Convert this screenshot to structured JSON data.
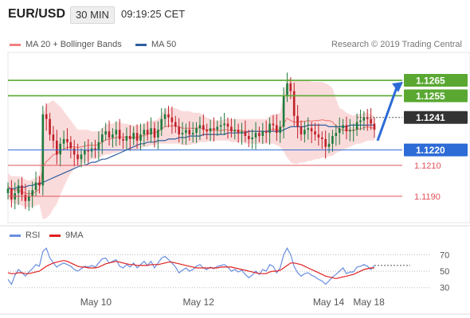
{
  "header": {
    "pair": "EUR/USD",
    "timeframe": "30 MIN",
    "time": "09:19:25 CET"
  },
  "legend": {
    "bollinger": "MA 20 + Bollinger Bands",
    "ma50": "MA 50",
    "copyright": "Research © 2019 Trading Central"
  },
  "rsi_legend": {
    "rsi": "RSI",
    "ma": "9MA"
  },
  "colors": {
    "up": "#1e7b3c",
    "down": "#c0202a",
    "green_level": "#5aa832",
    "blue_level": "#2d6bd6",
    "red_level": "#e0505a",
    "dark_level": "#333333",
    "band_fill": "#f8cfcf",
    "ma20": "#f08080",
    "ma50": "#2e5f9e",
    "rsi": "#6a8ee0",
    "rsi_ma": "#e02020"
  },
  "chart_data": [
    {
      "type": "candlestick",
      "title": "EUR/USD 30 MIN",
      "x_ticks": [
        "May 10",
        "May 12",
        "May 14",
        "May 18"
      ],
      "ylim": [
        1.1173,
        1.1283
      ],
      "levels": [
        {
          "value": 1.1265,
          "label": "1.1265",
          "style": "green"
        },
        {
          "value": 1.1255,
          "label": "1.1255",
          "style": "green"
        },
        {
          "value": 1.1241,
          "label": "1.1241",
          "style": "dark"
        },
        {
          "value": 1.122,
          "label": "1.1220",
          "style": "blue"
        },
        {
          "value": 1.121,
          "label": "1.1210",
          "style": "red"
        },
        {
          "value": 1.119,
          "label": "1.1190",
          "style": "red"
        }
      ],
      "close_series": [
        1.1195,
        1.1188,
        1.1192,
        1.1197,
        1.1191,
        1.1187,
        1.119,
        1.1194,
        1.1199,
        1.1197,
        1.1243,
        1.124,
        1.123,
        1.1226,
        1.1217,
        1.1224,
        1.1227,
        1.1225,
        1.1221,
        1.1217,
        1.1214,
        1.1217,
        1.122,
        1.1219,
        1.1221,
        1.122,
        1.1225,
        1.123,
        1.1232,
        1.1228,
        1.123,
        1.1233,
        1.1227,
        1.1226,
        1.1229,
        1.1227,
        1.1231,
        1.1226,
        1.123,
        1.1233,
        1.123,
        1.1234,
        1.1228,
        1.1233,
        1.124,
        1.1243,
        1.1241,
        1.1238,
        1.1235,
        1.123,
        1.1231,
        1.1233,
        1.123,
        1.1231,
        1.1234,
        1.1236,
        1.1233,
        1.1232,
        1.1234,
        1.1233,
        1.1235,
        1.1236,
        1.1237,
        1.1235,
        1.1232,
        1.1233,
        1.1231,
        1.1232,
        1.1229,
        1.1227,
        1.1228,
        1.1231,
        1.1229,
        1.1232,
        1.1231,
        1.1237,
        1.1236,
        1.1231,
        1.1235,
        1.1255,
        1.1263,
        1.1258,
        1.1242,
        1.1235,
        1.123,
        1.1233,
        1.1234,
        1.1232,
        1.123,
        1.1228,
        1.1227,
        1.1222,
        1.1224,
        1.1229,
        1.1231,
        1.1234,
        1.1236,
        1.1232,
        1.1233,
        1.1233,
        1.1238,
        1.1239,
        1.1241,
        1.124,
        1.1237,
        1.1233
      ],
      "bollinger": {
        "middle": "MA 20",
        "upper_series": [
          1.1205,
          1.1203,
          1.1203,
          1.1203,
          1.1202,
          1.1201,
          1.12,
          1.1201,
          1.1202,
          1.1204,
          1.1243,
          1.1249,
          1.1251,
          1.1252,
          1.125,
          1.1248,
          1.1245,
          1.1242,
          1.1239,
          1.1236,
          1.1233,
          1.1233,
          1.1233,
          1.1233,
          1.1232,
          1.1232,
          1.1232,
          1.1234,
          1.1236,
          1.1237,
          1.1237,
          1.1238,
          1.1238,
          1.1237,
          1.1237,
          1.1236,
          1.1236,
          1.1236,
          1.1236,
          1.1237,
          1.1238,
          1.1239,
          1.1239,
          1.124,
          1.1243,
          1.1246,
          1.1247,
          1.1247,
          1.1247,
          1.1246,
          1.1245,
          1.1245,
          1.1245,
          1.1244,
          1.1244,
          1.1244,
          1.1242,
          1.1241,
          1.124,
          1.1239,
          1.1239,
          1.1239,
          1.124,
          1.124,
          1.124,
          1.124,
          1.124,
          1.124,
          1.124,
          1.124,
          1.124,
          1.124,
          1.124,
          1.124,
          1.124,
          1.1242,
          1.1243,
          1.1243,
          1.1244,
          1.1255,
          1.1266,
          1.1266,
          1.1265,
          1.1265,
          1.1265,
          1.1265,
          1.1265,
          1.1264,
          1.1264,
          1.1264,
          1.1264,
          1.1263,
          1.1262,
          1.126,
          1.1253,
          1.1247,
          1.1246,
          1.1244,
          1.1243,
          1.1242,
          1.1243,
          1.1243,
          1.1244,
          1.1244,
          1.1243,
          1.1242
        ],
        "lower_series": [
          1.1188,
          1.1186,
          1.1185,
          1.1185,
          1.1184,
          1.1183,
          1.1183,
          1.1183,
          1.1184,
          1.1185,
          1.1175,
          1.1176,
          1.1178,
          1.1182,
          1.1185,
          1.1191,
          1.1196,
          1.1201,
          1.1205,
          1.1208,
          1.121,
          1.1211,
          1.1212,
          1.1213,
          1.1214,
          1.1214,
          1.1215,
          1.1216,
          1.1217,
          1.1217,
          1.1218,
          1.1218,
          1.1219,
          1.1219,
          1.122,
          1.122,
          1.122,
          1.122,
          1.1221,
          1.1222,
          1.1222,
          1.1223,
          1.1223,
          1.1224,
          1.1224,
          1.1224,
          1.1224,
          1.1224,
          1.1224,
          1.1224,
          1.1223,
          1.1223,
          1.1223,
          1.1224,
          1.1224,
          1.1225,
          1.1225,
          1.1225,
          1.1226,
          1.1226,
          1.1226,
          1.1226,
          1.1226,
          1.1226,
          1.1225,
          1.1225,
          1.1225,
          1.1225,
          1.1224,
          1.1224,
          1.1224,
          1.1224,
          1.1224,
          1.1224,
          1.1224,
          1.1224,
          1.1224,
          1.1223,
          1.1222,
          1.1219,
          1.1215,
          1.1212,
          1.1211,
          1.1211,
          1.1212,
          1.1212,
          1.1213,
          1.1213,
          1.1214,
          1.1214,
          1.1215,
          1.1215,
          1.1216,
          1.1216,
          1.1218,
          1.1219,
          1.122,
          1.1221,
          1.1222,
          1.1223,
          1.1224,
          1.1224,
          1.1225,
          1.1226,
          1.1226,
          1.1226
        ]
      },
      "ma50_series": [
        1.1195,
        1.1195,
        1.1195,
        1.1196,
        1.1196,
        1.1196,
        1.1197,
        1.1197,
        1.1198,
        1.1198,
        1.1199,
        1.12,
        1.1201,
        1.1202,
        1.1203,
        1.1204,
        1.1205,
        1.1206,
        1.1207,
        1.1208,
        1.1209,
        1.121,
        1.121,
        1.1211,
        1.1212,
        1.1212,
        1.1213,
        1.1214,
        1.1214,
        1.1215,
        1.1216,
        1.1217,
        1.1218,
        1.1219,
        1.122,
        1.1221,
        1.1222,
        1.1223,
        1.1224,
        1.1224,
        1.1225,
        1.1225,
        1.1225,
        1.1226,
        1.1226,
        1.1226,
        1.1227,
        1.1227,
        1.1227,
        1.1228,
        1.1228,
        1.1228,
        1.1229,
        1.1229,
        1.1229,
        1.1229,
        1.123,
        1.123,
        1.123,
        1.123,
        1.123,
        1.123,
        1.123,
        1.1231,
        1.1231,
        1.1231,
        1.1231,
        1.1231,
        1.1231,
        1.1232,
        1.1232,
        1.1232,
        1.1232,
        1.1232,
        1.1232,
        1.1232,
        1.1232,
        1.1232,
        1.1232,
        1.1233,
        1.1234,
        1.1235,
        1.1235,
        1.1235,
        1.1235,
        1.1235,
        1.1236,
        1.1236,
        1.1236,
        1.1236,
        1.1236,
        1.1236,
        1.1235,
        1.1235,
        1.1235,
        1.1235,
        1.1235,
        1.1235,
        1.1236,
        1.1236,
        1.1236,
        1.1236,
        1.1236,
        1.1236,
        1.1236,
        1.1236
      ]
    },
    {
      "type": "line",
      "title": "RSI",
      "ylim": [
        20,
        85
      ],
      "y_ticks": [
        70,
        50,
        30
      ],
      "series": [
        {
          "name": "RSI",
          "values": [
            40,
            34,
            45,
            52,
            48,
            44,
            49,
            53,
            58,
            56,
            74,
            78,
            66,
            60,
            55,
            58,
            60,
            58,
            56,
            52,
            50,
            53,
            56,
            55,
            57,
            55,
            60,
            65,
            66,
            60,
            62,
            64,
            56,
            54,
            58,
            55,
            60,
            54,
            58,
            62,
            57,
            62,
            54,
            60,
            66,
            68,
            64,
            60,
            55,
            48,
            51,
            54,
            50,
            52,
            56,
            58,
            54,
            52,
            55,
            53,
            56,
            57,
            58,
            55,
            50,
            52,
            49,
            51,
            46,
            42,
            45,
            50,
            46,
            52,
            50,
            58,
            56,
            48,
            54,
            70,
            78,
            70,
            56,
            48,
            44,
            47,
            48,
            45,
            43,
            40,
            38,
            34,
            38,
            43,
            46,
            50,
            54,
            47,
            49,
            49,
            55,
            56,
            58,
            56,
            52,
            57
          ]
        },
        {
          "name": "9MA",
          "values": [
            48,
            47,
            47,
            48,
            48,
            47,
            47,
            48,
            49,
            50,
            53,
            56,
            58,
            60,
            61,
            62,
            63,
            62,
            60,
            58,
            56,
            55,
            55,
            54,
            54,
            54,
            55,
            57,
            59,
            60,
            61,
            62,
            61,
            60,
            59,
            58,
            58,
            57,
            57,
            57,
            57,
            58,
            58,
            58,
            59,
            60,
            61,
            61,
            60,
            59,
            58,
            57,
            56,
            55,
            54,
            54,
            54,
            54,
            54,
            54,
            54,
            55,
            55,
            55,
            55,
            54,
            53,
            52,
            51,
            50,
            49,
            48,
            47,
            47,
            47,
            49,
            50,
            50,
            51,
            54,
            57,
            60,
            60,
            59,
            58,
            56,
            54,
            52,
            50,
            48,
            46,
            44,
            43,
            42,
            41,
            42,
            43,
            44,
            45,
            46,
            48,
            50,
            52,
            53,
            54,
            54
          ]
        }
      ]
    }
  ]
}
